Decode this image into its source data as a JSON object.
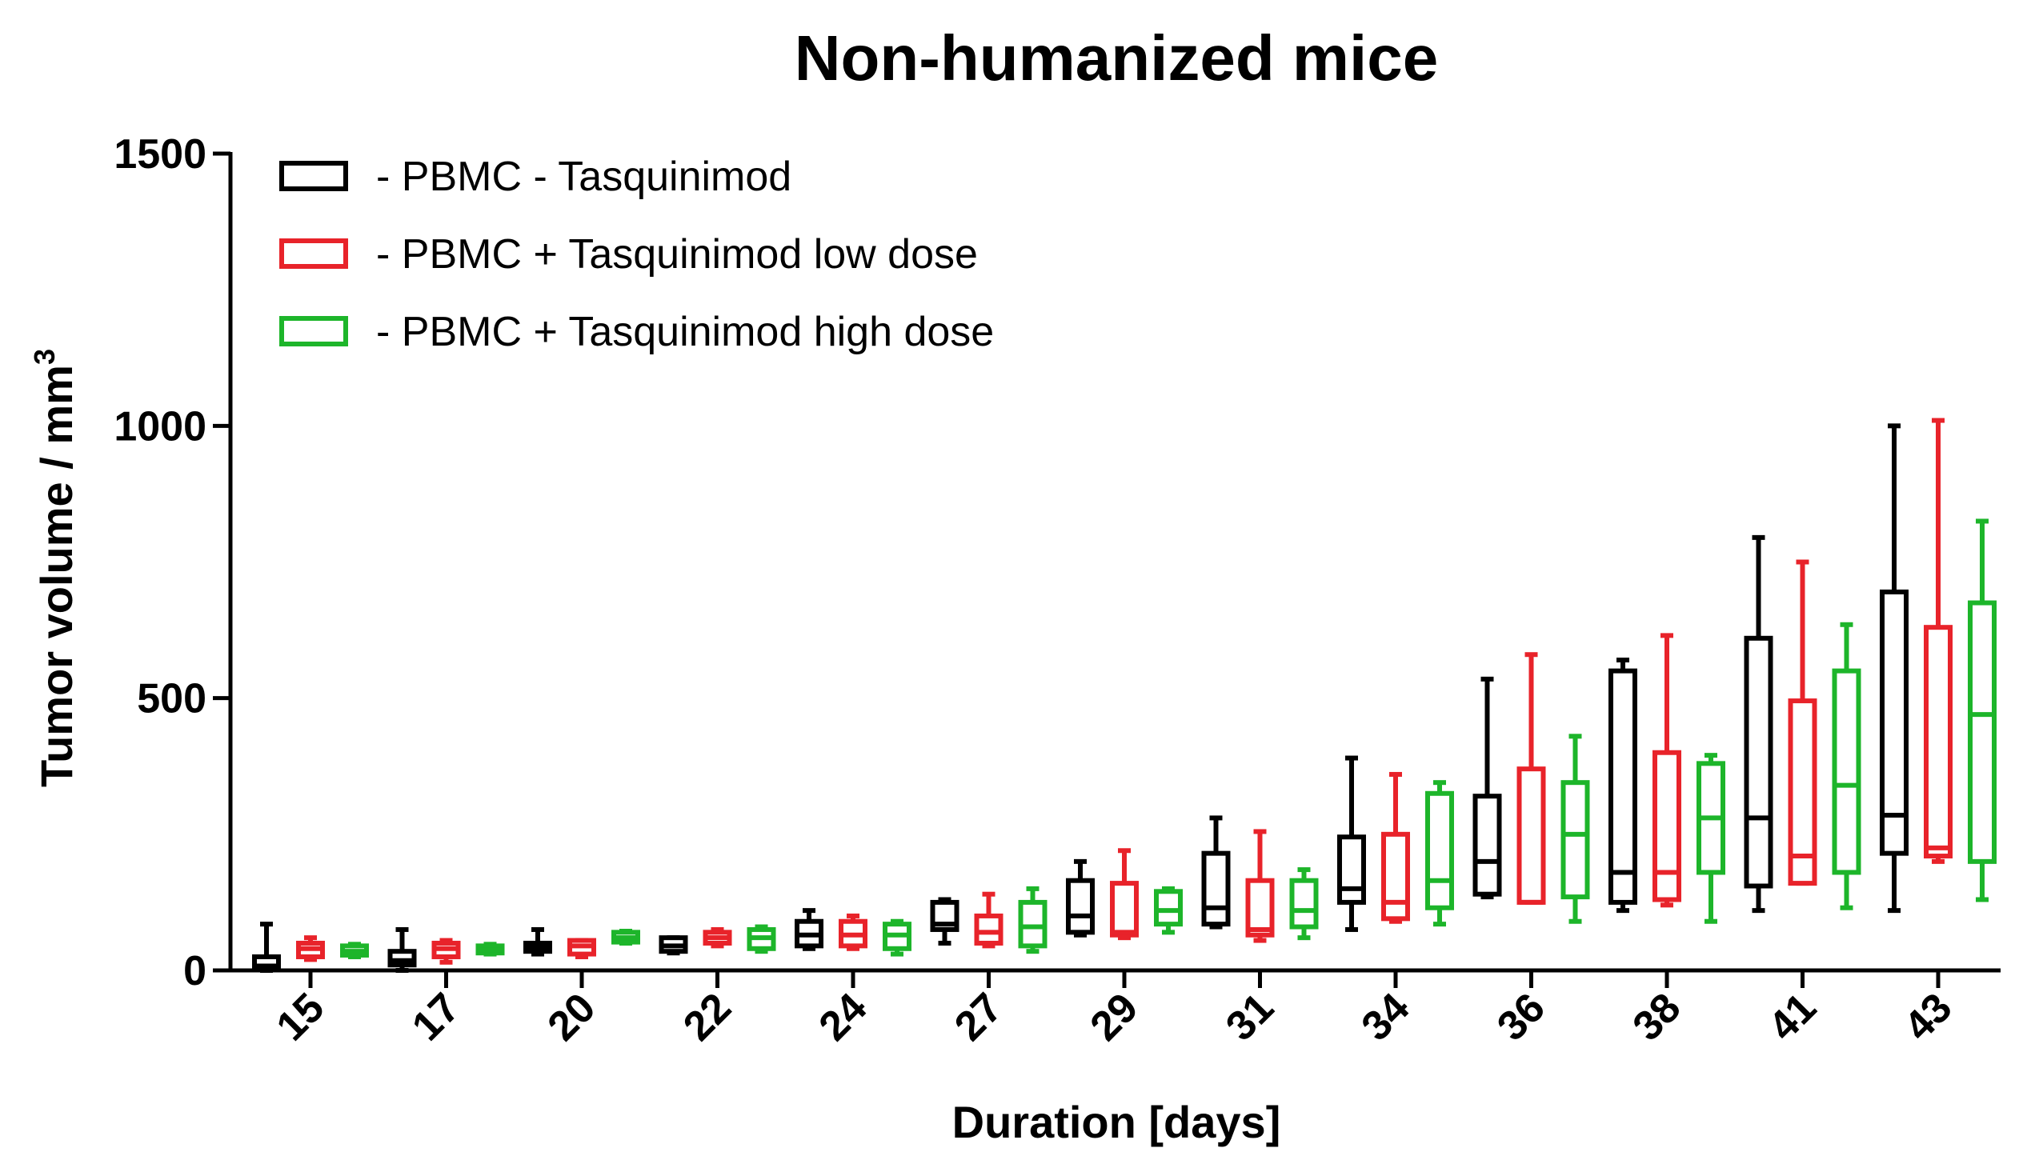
{
  "chart_data": {
    "type": "box",
    "title": "Non-humanized mice",
    "xlabel": "Duration [days]",
    "ylabel_main": "Tumor volume / mm",
    "ylabel_sup": "3",
    "ylim": [
      0,
      1500
    ],
    "yticks": [
      {
        "value": 0,
        "label": "0"
      },
      {
        "value": 500,
        "label": "500"
      },
      {
        "value": 1000,
        "label": "1000"
      },
      {
        "value": 1500,
        "label": "1500"
      }
    ],
    "categories": [
      "15",
      "17",
      "20",
      "22",
      "24",
      "27",
      "29",
      "31",
      "34",
      "36",
      "38",
      "41",
      "43"
    ],
    "series": [
      {
        "name": "- PBMC - Tasquinimod",
        "color": "#000000",
        "boxes": [
          {
            "min": 0,
            "q1": 5,
            "median": 8,
            "q3": 25,
            "max": 85
          },
          {
            "min": 0,
            "q1": 10,
            "median": 18,
            "q3": 35,
            "max": 75
          },
          {
            "min": 30,
            "q1": 35,
            "median": 42,
            "q3": 50,
            "max": 75
          },
          {
            "min": 32,
            "q1": 35,
            "median": 45,
            "q3": 60,
            "max": 60
          },
          {
            "min": 40,
            "q1": 45,
            "median": 65,
            "q3": 90,
            "max": 110
          },
          {
            "min": 50,
            "q1": 75,
            "median": 85,
            "q3": 125,
            "max": 130
          },
          {
            "min": 65,
            "q1": 70,
            "median": 100,
            "q3": 165,
            "max": 200
          },
          {
            "min": 80,
            "q1": 85,
            "median": 115,
            "q3": 215,
            "max": 280
          },
          {
            "min": 75,
            "q1": 125,
            "median": 150,
            "q3": 245,
            "max": 390
          },
          {
            "min": 135,
            "q1": 140,
            "median": 200,
            "q3": 320,
            "max": 535
          },
          {
            "min": 110,
            "q1": 125,
            "median": 180,
            "q3": 550,
            "max": 570
          },
          {
            "min": 110,
            "q1": 155,
            "median": 280,
            "q3": 610,
            "max": 795
          },
          {
            "min": 110,
            "q1": 215,
            "median": 285,
            "q3": 695,
            "max": 1000
          }
        ]
      },
      {
        "name": "- PBMC + Tasquinimod low dose",
        "color": "#e8232a",
        "boxes": [
          {
            "min": 20,
            "q1": 25,
            "median": 40,
            "q3": 50,
            "max": 60
          },
          {
            "min": 15,
            "q1": 25,
            "median": 40,
            "q3": 50,
            "max": 55
          },
          {
            "min": 25,
            "q1": 30,
            "median": 45,
            "q3": 55,
            "max": 55
          },
          {
            "min": 45,
            "q1": 50,
            "median": 60,
            "q3": 70,
            "max": 75
          },
          {
            "min": 40,
            "q1": 45,
            "median": 65,
            "q3": 90,
            "max": 100
          },
          {
            "min": 45,
            "q1": 50,
            "median": 70,
            "q3": 100,
            "max": 140
          },
          {
            "min": 60,
            "q1": 65,
            "median": 70,
            "q3": 160,
            "max": 220
          },
          {
            "min": 55,
            "q1": 65,
            "median": 75,
            "q3": 165,
            "max": 255
          },
          {
            "min": 90,
            "q1": 95,
            "median": 125,
            "q3": 250,
            "max": 360
          },
          {
            "min": 125,
            "q1": 125,
            "median": 125,
            "q3": 370,
            "max": 580
          },
          {
            "min": 120,
            "q1": 130,
            "median": 180,
            "q3": 400,
            "max": 615
          },
          {
            "min": 160,
            "q1": 160,
            "median": 210,
            "q3": 495,
            "max": 750
          },
          {
            "min": 200,
            "q1": 210,
            "median": 225,
            "q3": 630,
            "max": 1010
          }
        ]
      },
      {
        "name": "- PBMC + Tasquinimod high dose",
        "color": "#1db52a",
        "boxes": [
          {
            "min": 25,
            "q1": 28,
            "median": 35,
            "q3": 45,
            "max": 48
          },
          {
            "min": 30,
            "q1": 32,
            "median": 38,
            "q3": 45,
            "max": 48
          },
          {
            "min": 50,
            "q1": 52,
            "median": 60,
            "q3": 70,
            "max": 72
          },
          {
            "min": 35,
            "q1": 40,
            "median": 60,
            "q3": 75,
            "max": 80
          },
          {
            "min": 30,
            "q1": 40,
            "median": 65,
            "q3": 85,
            "max": 90
          },
          {
            "min": 35,
            "q1": 45,
            "median": 80,
            "q3": 125,
            "max": 150
          },
          {
            "min": 70,
            "q1": 85,
            "median": 110,
            "q3": 145,
            "max": 150
          },
          {
            "min": 60,
            "q1": 80,
            "median": 110,
            "q3": 165,
            "max": 185
          },
          {
            "min": 85,
            "q1": 115,
            "median": 165,
            "q3": 325,
            "max": 345
          },
          {
            "min": 90,
            "q1": 135,
            "median": 250,
            "q3": 345,
            "max": 430
          },
          {
            "min": 90,
            "q1": 180,
            "median": 280,
            "q3": 380,
            "max": 395
          },
          {
            "min": 115,
            "q1": 180,
            "median": 340,
            "q3": 550,
            "max": 635
          },
          {
            "min": 130,
            "q1": 200,
            "median": 470,
            "q3": 675,
            "max": 825
          }
        ]
      }
    ],
    "legend_position": "top-left"
  }
}
